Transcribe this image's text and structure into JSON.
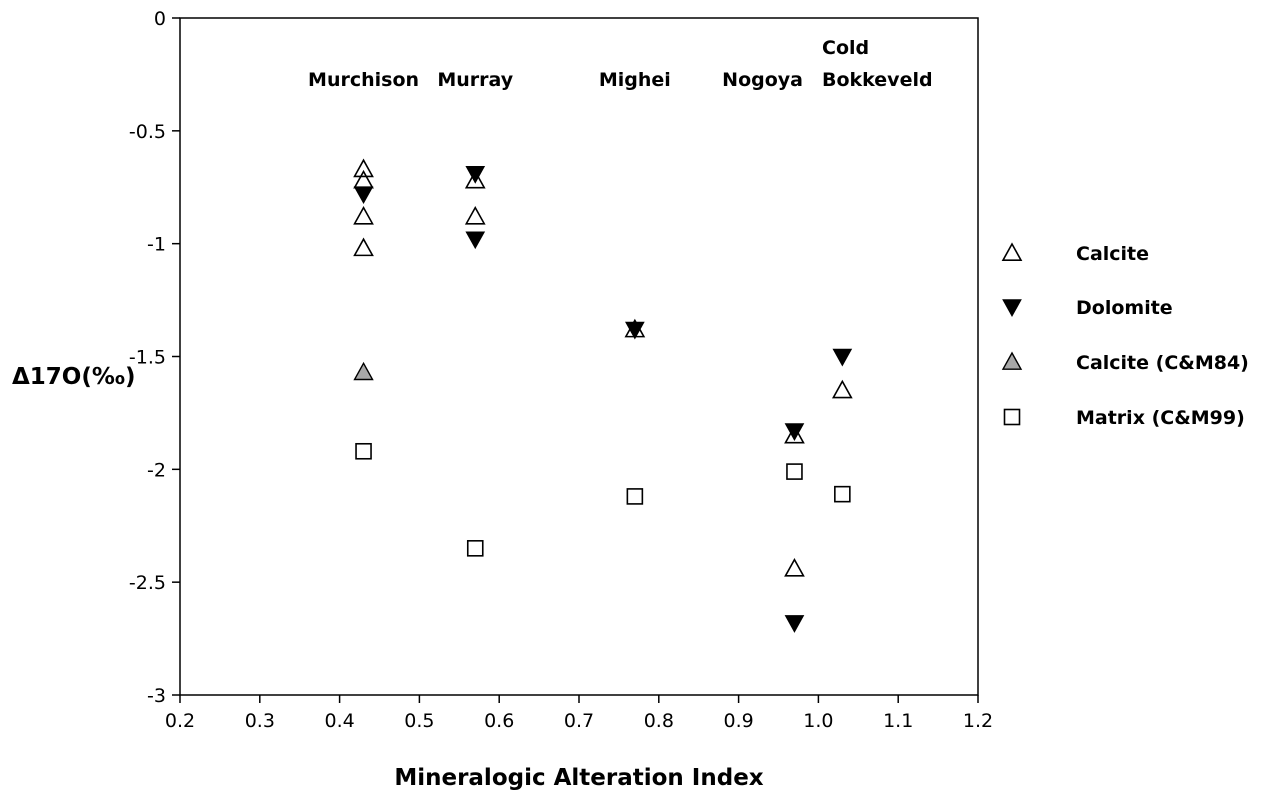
{
  "chart_data": {
    "type": "scatter",
    "title": "",
    "xlabel": "Mineralogic Alteration Index",
    "ylabel": "Δ17O(‰)",
    "xlim": [
      0.2,
      1.2
    ],
    "ylim": [
      -3,
      0
    ],
    "x_ticks": [
      "0.2",
      "0.3",
      "0.4",
      "0.5",
      "0.6",
      "0.7",
      "0.8",
      "0.9",
      "1.0",
      "1.1",
      "1.2"
    ],
    "y_ticks": [
      "0",
      "-0.5",
      "-1",
      "-1.5",
      "-2",
      "-2.5",
      "-3"
    ],
    "grid": false,
    "legend_position": "right",
    "annotations": [
      {
        "lines": [
          "Murchison"
        ],
        "x": 0.43
      },
      {
        "lines": [
          "Murray"
        ],
        "x": 0.57
      },
      {
        "lines": [
          "Mighei"
        ],
        "x": 0.77
      },
      {
        "lines": [
          "Nogoya"
        ],
        "x": 0.97
      },
      {
        "lines": [
          "Cold",
          "Bokkeveld"
        ],
        "x": 1.03
      }
    ],
    "series": [
      {
        "name": "Calcite",
        "marker": "triangle-up-open",
        "color": "#000000",
        "points": [
          [
            0.43,
            -0.67
          ],
          [
            0.43,
            -0.72
          ],
          [
            0.43,
            -0.88
          ],
          [
            0.43,
            -1.02
          ],
          [
            0.57,
            -0.72
          ],
          [
            0.57,
            -0.88
          ],
          [
            0.77,
            -1.38
          ],
          [
            0.97,
            -1.85
          ],
          [
            0.97,
            -2.44
          ],
          [
            1.03,
            -1.65
          ]
        ]
      },
      {
        "name": "Dolomite",
        "marker": "triangle-down-filled",
        "color": "#000000",
        "points": [
          [
            0.43,
            -0.78
          ],
          [
            0.57,
            -0.69
          ],
          [
            0.57,
            -0.98
          ],
          [
            0.77,
            -1.38
          ],
          [
            0.97,
            -1.83
          ],
          [
            0.97,
            -2.68
          ],
          [
            1.03,
            -1.5
          ]
        ]
      },
      {
        "name": "Calcite (C&M84)",
        "marker": "triangle-up-gray",
        "color": "#a8a8a8",
        "points": [
          [
            0.43,
            -1.57
          ]
        ]
      },
      {
        "name": "Matrix (C&M99)",
        "marker": "square-open",
        "color": "#000000",
        "points": [
          [
            0.43,
            -1.92
          ],
          [
            0.57,
            -2.35
          ],
          [
            0.77,
            -2.12
          ],
          [
            0.97,
            -2.01
          ],
          [
            1.03,
            -2.11
          ]
        ]
      }
    ]
  }
}
